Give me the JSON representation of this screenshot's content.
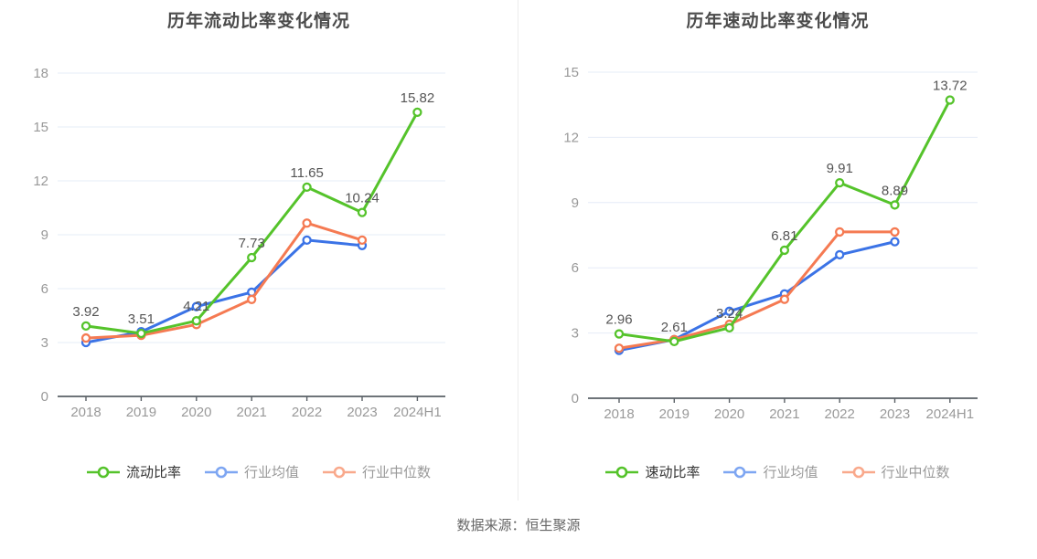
{
  "footer": "数据来源：恒生聚源",
  "colors": {
    "grid": "#e6ecf7",
    "axis": "#5a6066",
    "axis_label": "#999999",
    "data_label": "#555555",
    "title": "#4b4b4b",
    "divider": "#ececec",
    "footer_text": "#666666",
    "marker_fill": "#ffffff"
  },
  "chart_data": [
    {
      "type": "line",
      "title": "历年流动比率变化情况",
      "categories": [
        "2018",
        "2019",
        "2020",
        "2021",
        "2022",
        "2023",
        "2024H1"
      ],
      "y_ticks": [
        0,
        3,
        6,
        9,
        12,
        15,
        18
      ],
      "ylim": [
        0,
        18
      ],
      "grid": true,
      "legend_position": "bottom",
      "series": [
        {
          "name": "流动比率",
          "slug": "current-ratio",
          "color": "#55c32b",
          "legend_color": "#55c32b",
          "legend_text_color": "#333333",
          "labeled": true,
          "values": [
            3.92,
            3.51,
            4.21,
            7.73,
            11.65,
            10.24,
            15.82
          ]
        },
        {
          "name": "行业均值",
          "slug": "industry-mean",
          "color": "#3b73e6",
          "legend_color": "#7ea6f2",
          "legend_text_color": "#999999",
          "labeled": false,
          "values": [
            3.0,
            3.6,
            5.0,
            5.8,
            8.7,
            8.4,
            null
          ]
        },
        {
          "name": "行业中位数",
          "slug": "industry-median",
          "color": "#f57a52",
          "legend_color": "#f9a98c",
          "legend_text_color": "#999999",
          "labeled": false,
          "values": [
            3.25,
            3.4,
            4.0,
            5.4,
            9.65,
            8.7,
            null
          ]
        }
      ]
    },
    {
      "type": "line",
      "title": "历年速动比率变化情况",
      "categories": [
        "2018",
        "2019",
        "2020",
        "2021",
        "2022",
        "2023",
        "2024H1"
      ],
      "y_ticks": [
        0,
        3,
        6,
        9,
        12,
        15
      ],
      "ylim": [
        0,
        15
      ],
      "grid": true,
      "legend_position": "bottom",
      "series": [
        {
          "name": "速动比率",
          "slug": "quick-ratio",
          "color": "#55c32b",
          "legend_color": "#55c32b",
          "legend_text_color": "#333333",
          "labeled": true,
          "values": [
            2.96,
            2.61,
            3.24,
            6.81,
            9.91,
            8.89,
            13.72
          ]
        },
        {
          "name": "行业均值",
          "slug": "industry-mean",
          "color": "#3b73e6",
          "legend_color": "#7ea6f2",
          "legend_text_color": "#999999",
          "labeled": false,
          "values": [
            2.2,
            2.7,
            4.0,
            4.8,
            6.6,
            7.2,
            null
          ]
        },
        {
          "name": "行业中位数",
          "slug": "industry-median",
          "color": "#f57a52",
          "legend_color": "#f9a98c",
          "legend_text_color": "#999999",
          "labeled": false,
          "values": [
            2.3,
            2.7,
            3.4,
            4.55,
            7.65,
            7.65,
            null
          ]
        }
      ]
    }
  ]
}
